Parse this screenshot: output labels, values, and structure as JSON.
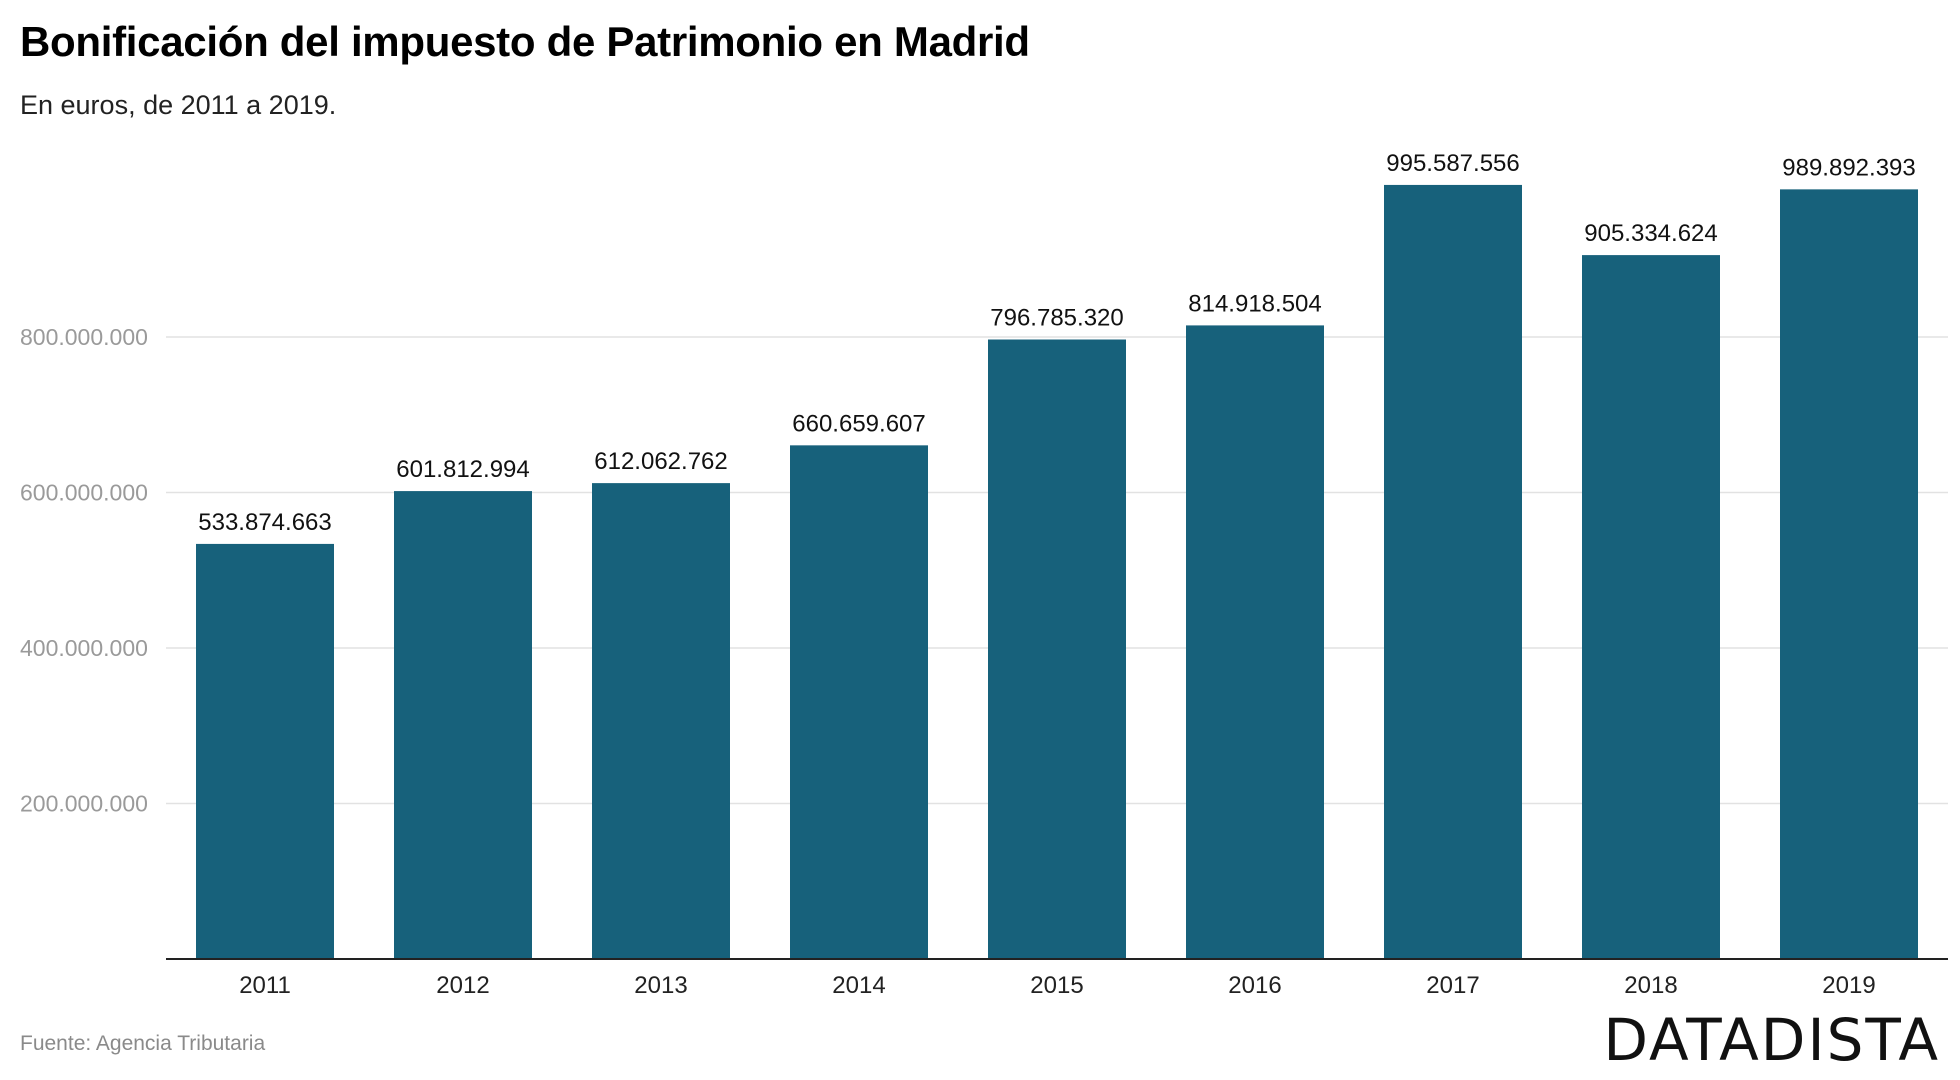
{
  "title": "Bonificación del impuesto de Patrimonio en Madrid",
  "subtitle": "En euros, de 2011 a 2019.",
  "source": "Fuente: Agencia Tributaria",
  "brand": "DATADISTA",
  "colors": {
    "bar": "#17617b",
    "grid": "#e2e2e2",
    "axis": "#222222"
  },
  "chart_data": {
    "type": "bar",
    "categories": [
      "2011",
      "2012",
      "2013",
      "2014",
      "2015",
      "2016",
      "2017",
      "2018",
      "2019"
    ],
    "values": [
      533874663,
      601812994,
      612062762,
      660659607,
      796785320,
      814918504,
      995587556,
      905334624,
      989892393
    ],
    "value_labels": [
      "533.874.663",
      "601.812.994",
      "612.062.762",
      "660.659.607",
      "796.785.320",
      "814.918.504",
      "995.587.556",
      "905.334.624",
      "989.892.393"
    ],
    "yticks": [
      200000000,
      400000000,
      600000000,
      800000000
    ],
    "ytick_labels": [
      "200.000.000",
      "400.000.000",
      "600.000.000",
      "800.000.000"
    ],
    "ylim": [
      0,
      1000000000
    ],
    "grid": true,
    "legend": "none"
  }
}
